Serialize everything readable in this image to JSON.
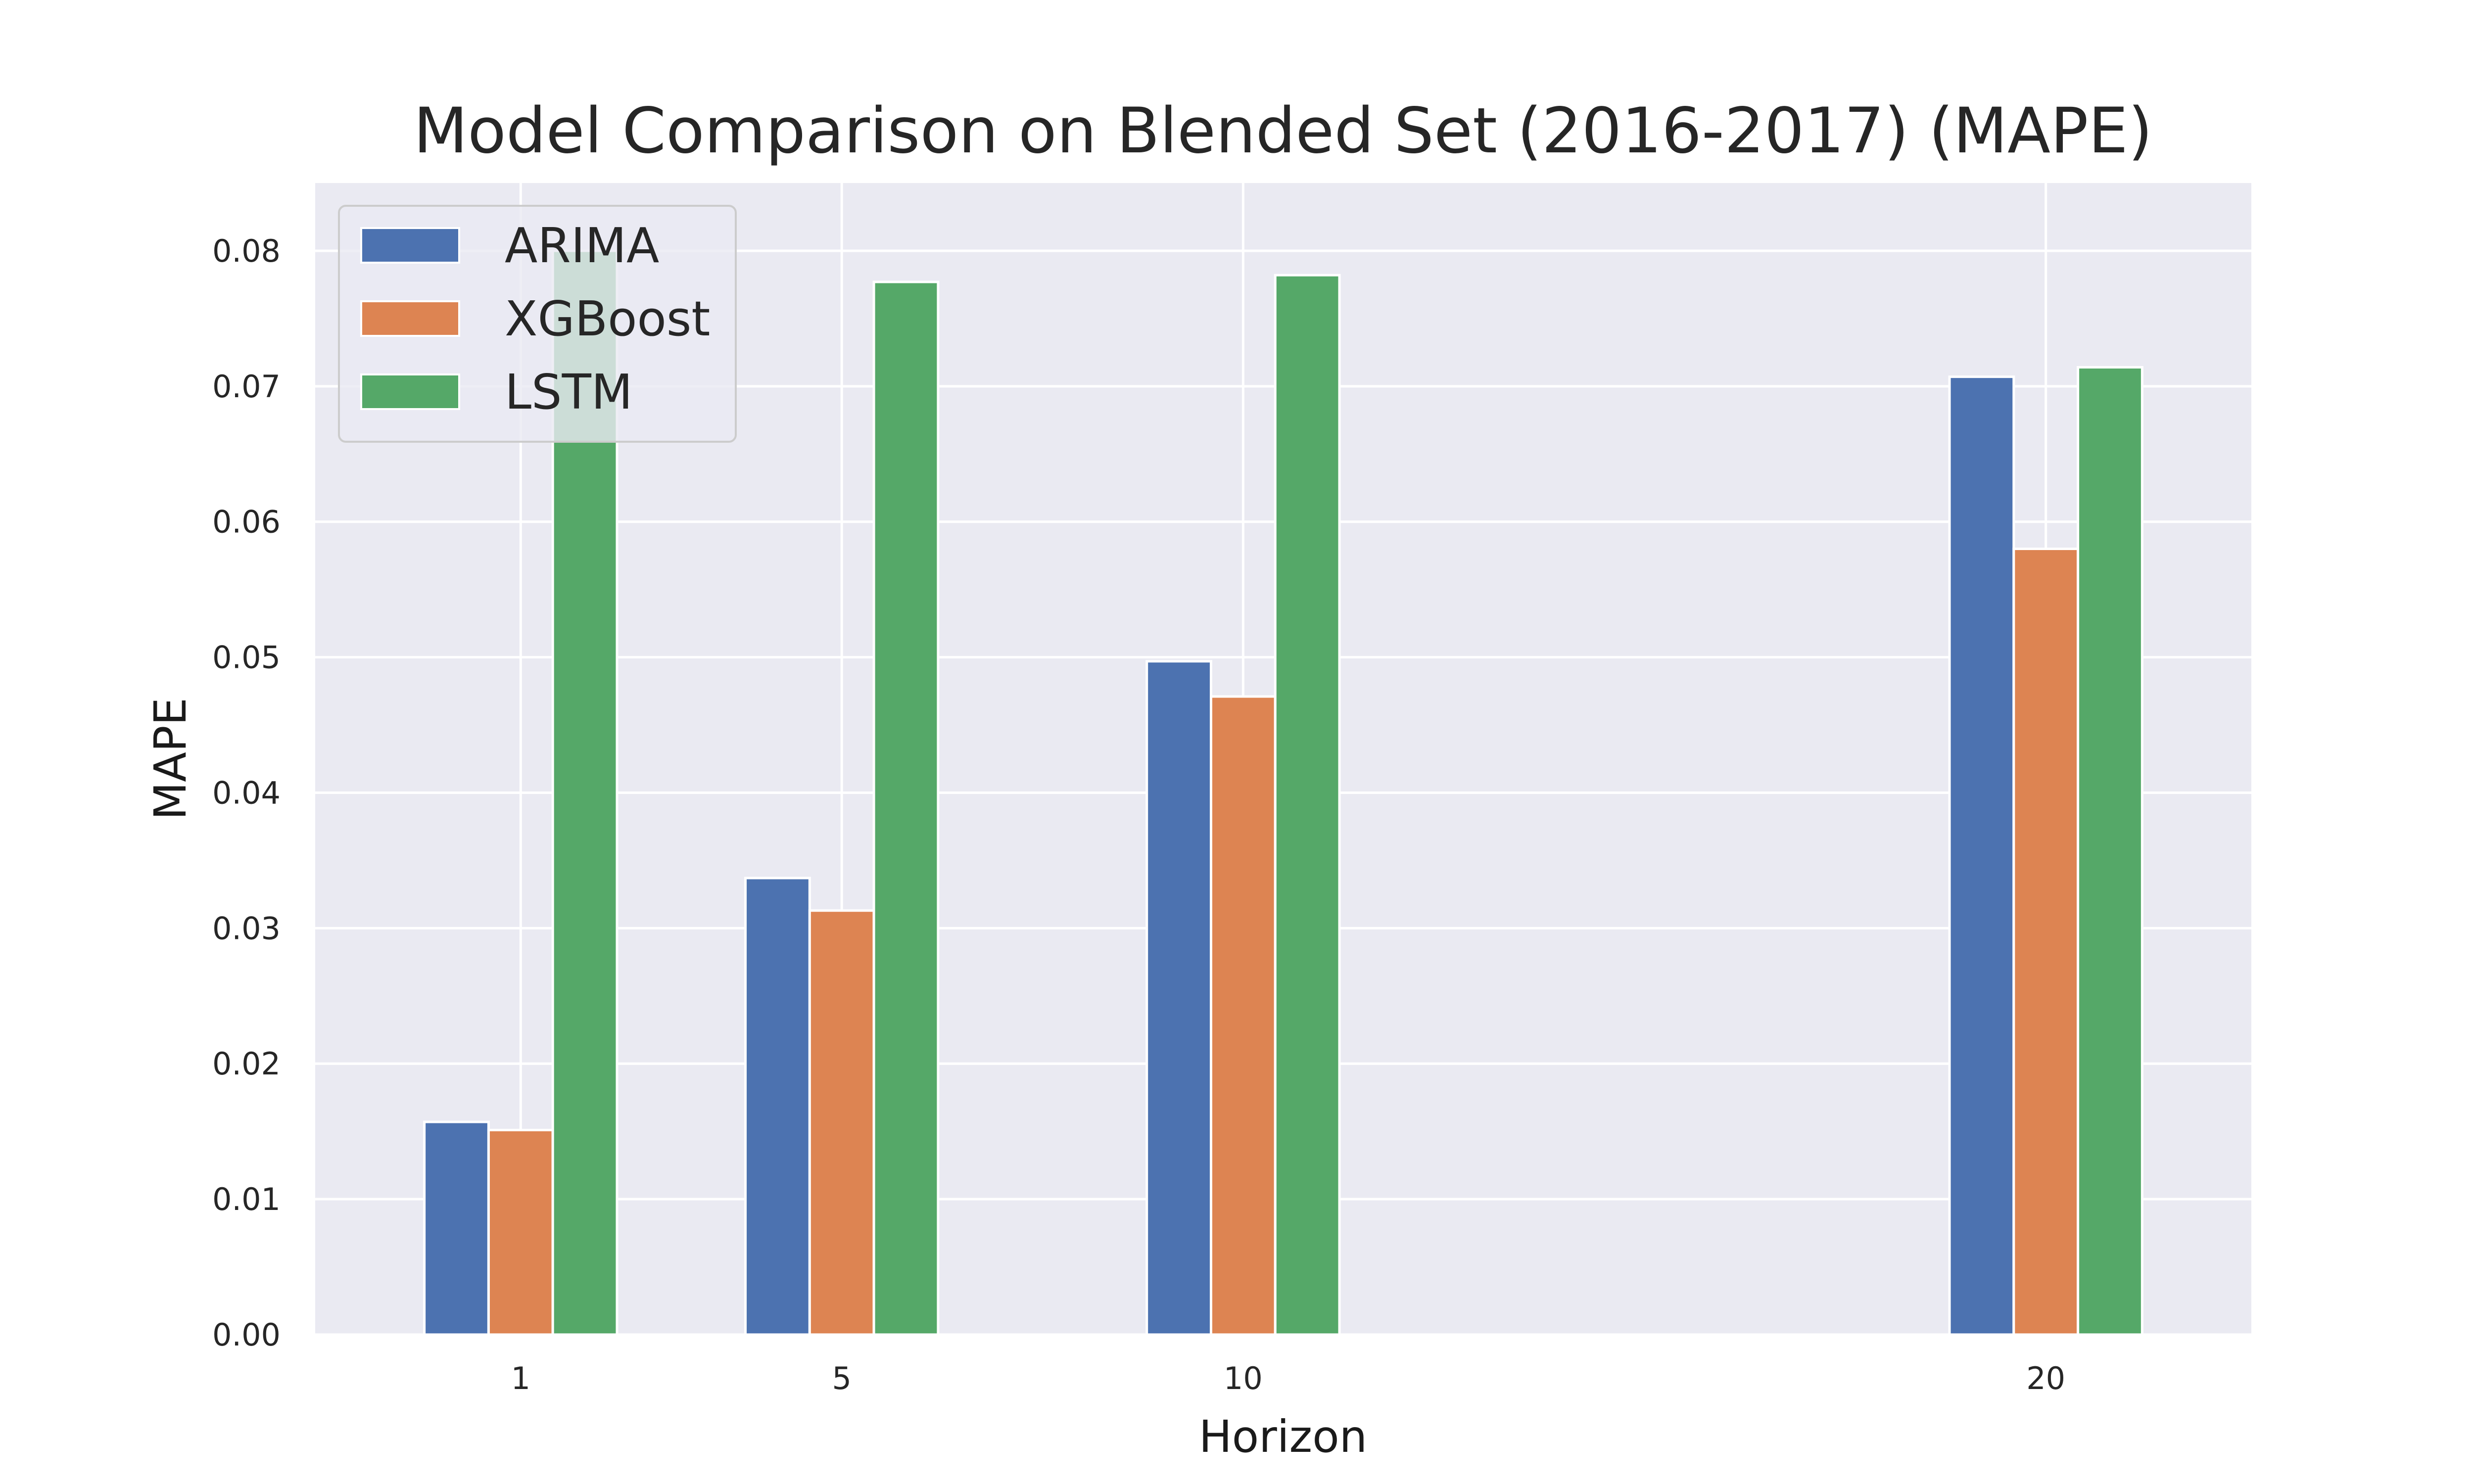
{
  "chart_data": {
    "type": "bar",
    "title": "Model Comparison on Blended Set (2016-2017) (MAPE)",
    "xlabel": "Horizon",
    "ylabel": "MAPE",
    "x": [
      1,
      5,
      10,
      20
    ],
    "xticks": [
      "1",
      "5",
      "10",
      "20"
    ],
    "xlim": [
      -1.56,
      22.56
    ],
    "ylim": [
      0,
      0.085
    ],
    "yticks": [
      "0.00",
      "0.01",
      "0.02",
      "0.03",
      "0.04",
      "0.05",
      "0.06",
      "0.07",
      "0.08"
    ],
    "grid": true,
    "legend_position": "top-left",
    "series": [
      {
        "name": "ARIMA",
        "color": "#4c72b0",
        "values": [
          0.0157,
          0.0337,
          0.0497,
          0.0707
        ]
      },
      {
        "name": "XGBoost",
        "color": "#dd8452",
        "values": [
          0.0151,
          0.0313,
          0.0471,
          0.058
        ]
      },
      {
        "name": "LSTM",
        "color": "#55a868",
        "values": [
          0.08,
          0.0777,
          0.0782,
          0.0714
        ]
      }
    ],
    "colors": {
      "plot_background": "#eaeaf2",
      "grid": "#ffffff"
    }
  }
}
